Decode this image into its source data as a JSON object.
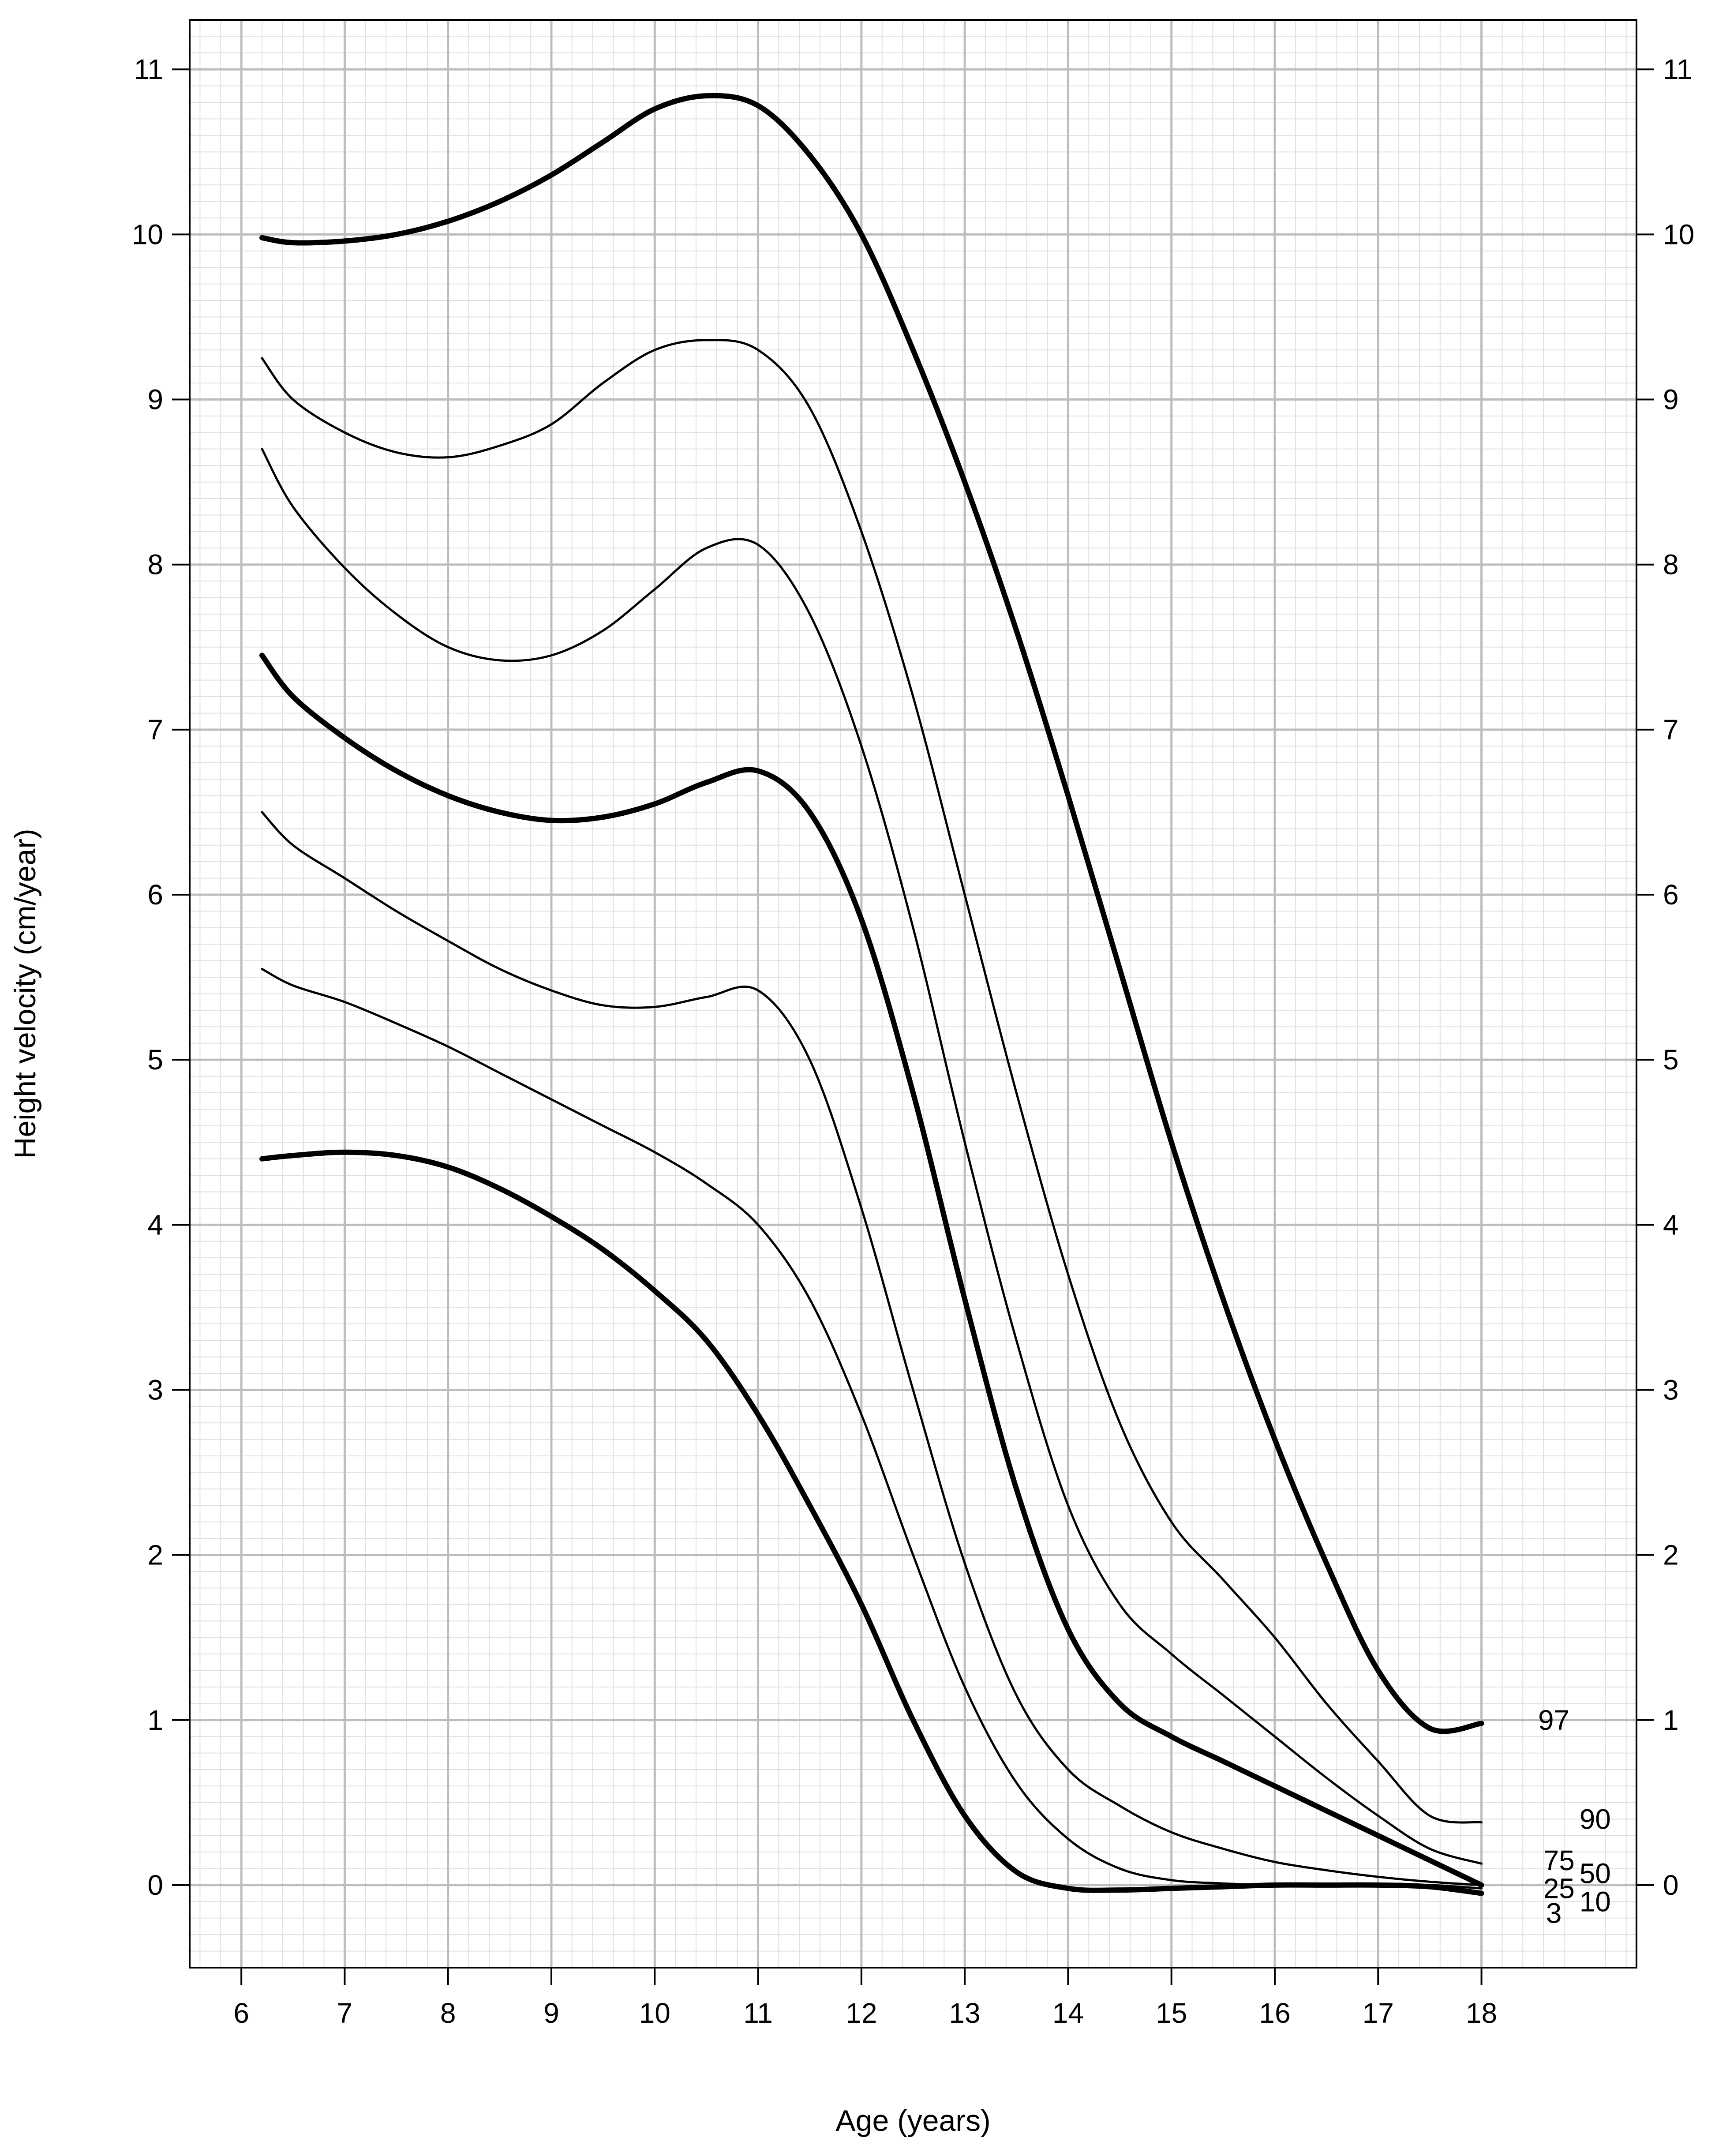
{
  "chart_data": {
    "type": "line",
    "title": "",
    "xlabel": "Age (years)",
    "ylabel": "Height velocity (cm/year)",
    "xlim": [
      5.5,
      19.5
    ],
    "ylim": [
      -0.5,
      11.3
    ],
    "x_ticks": [
      6,
      7,
      8,
      9,
      10,
      11,
      12,
      13,
      14,
      15,
      16,
      17,
      18
    ],
    "y_ticks": [
      0,
      1,
      2,
      3,
      4,
      5,
      6,
      7,
      8,
      9,
      10,
      11
    ],
    "y_ticks_right": [
      0,
      1,
      2,
      3,
      4,
      5,
      6,
      7,
      8,
      9,
      10,
      11
    ],
    "grid": true,
    "minor_grid": true,
    "legend": "none",
    "line_color": "#000000",
    "grid_color_major": "#bdbdbd",
    "grid_color_minor": "#e0e0e0",
    "x": [
      6.2,
      6.5,
      7,
      7.5,
      8,
      8.5,
      9,
      9.5,
      10,
      10.5,
      11,
      11.5,
      12,
      12.5,
      13,
      13.5,
      14,
      14.5,
      15,
      15.5,
      16,
      16.5,
      17,
      17.5,
      18
    ],
    "series": [
      {
        "name": "97",
        "bold": true,
        "label_x": 18.7,
        "label_y": 1.0,
        "values": [
          9.98,
          9.95,
          9.96,
          10.0,
          10.08,
          10.2,
          10.36,
          10.56,
          10.76,
          10.84,
          10.78,
          10.48,
          10.0,
          9.3,
          8.5,
          7.6,
          6.6,
          5.55,
          4.5,
          3.55,
          2.7,
          1.95,
          1.3,
          0.95,
          0.98
        ]
      },
      {
        "name": "90",
        "bold": false,
        "label_x": 19.1,
        "label_y": 0.4,
        "values": [
          9.25,
          9.0,
          8.8,
          8.68,
          8.65,
          8.72,
          8.85,
          9.1,
          9.3,
          9.36,
          9.3,
          8.95,
          8.2,
          7.2,
          6.0,
          4.8,
          3.7,
          2.8,
          2.2,
          1.85,
          1.5,
          1.1,
          0.75,
          0.42,
          0.38
        ]
      },
      {
        "name": "75",
        "bold": false,
        "label_x": 18.75,
        "label_y": 0.15,
        "values": [
          8.7,
          8.35,
          7.98,
          7.7,
          7.5,
          7.42,
          7.45,
          7.6,
          7.85,
          8.1,
          8.12,
          7.7,
          6.9,
          5.8,
          4.5,
          3.3,
          2.3,
          1.7,
          1.4,
          1.15,
          0.9,
          0.65,
          0.42,
          0.22,
          0.13
        ]
      },
      {
        "name": "50",
        "bold": true,
        "label_x": 19.1,
        "label_y": 0.07,
        "values": [
          7.45,
          7.2,
          6.95,
          6.75,
          6.6,
          6.5,
          6.45,
          6.47,
          6.55,
          6.68,
          6.75,
          6.5,
          5.85,
          4.8,
          3.55,
          2.4,
          1.55,
          1.1,
          0.9,
          0.75,
          0.6,
          0.45,
          0.3,
          0.15,
          0.0
        ]
      },
      {
        "name": "25",
        "bold": false,
        "label_x": 18.75,
        "label_y": -0.02,
        "values": [
          6.5,
          6.3,
          6.1,
          5.9,
          5.72,
          5.55,
          5.42,
          5.33,
          5.32,
          5.38,
          5.42,
          5.0,
          4.1,
          3.0,
          1.95,
          1.15,
          0.7,
          0.48,
          0.32,
          0.22,
          0.14,
          0.09,
          0.05,
          0.02,
          0.0
        ]
      },
      {
        "name": "10",
        "bold": false,
        "label_x": 19.1,
        "label_y": -0.1,
        "values": [
          5.55,
          5.45,
          5.35,
          5.22,
          5.08,
          4.92,
          4.76,
          4.6,
          4.44,
          4.25,
          4.0,
          3.55,
          2.85,
          2.0,
          1.2,
          0.62,
          0.28,
          0.1,
          0.03,
          0.01,
          0.0,
          0.0,
          0.0,
          0.0,
          -0.02
        ]
      },
      {
        "name": "3",
        "bold": true,
        "label_x": 18.7,
        "label_y": -0.17,
        "values": [
          4.4,
          4.42,
          4.44,
          4.42,
          4.35,
          4.22,
          4.05,
          3.85,
          3.6,
          3.3,
          2.85,
          2.3,
          1.7,
          1.0,
          0.42,
          0.08,
          -0.02,
          -0.03,
          -0.02,
          -0.01,
          0.0,
          0.0,
          0.0,
          -0.01,
          -0.05
        ]
      }
    ]
  }
}
